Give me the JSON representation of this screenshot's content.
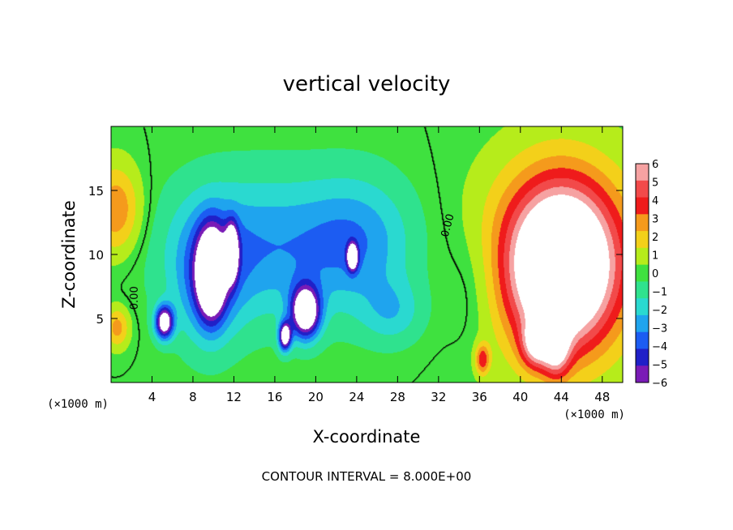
{
  "chart_data": {
    "type": "heatmap",
    "title": "vertical velocity",
    "xlabel": "X-coordinate",
    "ylabel": "Z-coordinate",
    "x_unit": "(×1000 m)",
    "y_unit": "(×1000 m)",
    "xlim": [
      0,
      50
    ],
    "ylim": [
      0,
      20
    ],
    "x_ticks": [
      4,
      8,
      12,
      16,
      20,
      24,
      28,
      32,
      36,
      40,
      44,
      48
    ],
    "y_ticks": [
      5,
      10,
      15
    ],
    "colorbar": {
      "levels": [
        6,
        5,
        4,
        3,
        2,
        1,
        0,
        -1,
        -2,
        -3,
        -4,
        -5,
        -6
      ],
      "colors": [
        "#f6a2a2",
        "#f24a4a",
        "#ef1b1b",
        "#f59a1c",
        "#f3d01a",
        "#b6ec1b",
        "#3fe13f",
        "#2fe28e",
        "#2ad9d0",
        "#1fa4ee",
        "#1c5cf2",
        "#2020c8",
        "#7a1bb6"
      ]
    },
    "contour_labels": [
      "0.00",
      "0.00"
    ],
    "footer": "CONTOUR INTERVAL = 8.000E+00",
    "blobs": [
      {
        "x": 0.5,
        "z": 13.5,
        "rx": 2.4,
        "rz": 3.5,
        "v": 3.5
      },
      {
        "x": 0.6,
        "z": 4.3,
        "rx": 1.2,
        "rz": 1.6,
        "v": 3.0
      },
      {
        "x": 14,
        "z": 10.5,
        "rx": 8.5,
        "rz": 5.5,
        "v": -3.3
      },
      {
        "x": 24,
        "z": 11,
        "rx": 5.5,
        "rz": 5.0,
        "v": -3.0
      },
      {
        "x": 9.5,
        "z": 8,
        "rx": 3.0,
        "rz": 5.0,
        "v": -3.5
      },
      {
        "x": 9.8,
        "z": 8.5,
        "rx": 1.3,
        "rz": 3.2,
        "v": -9.0
      },
      {
        "x": 11.8,
        "z": 10.2,
        "rx": 0.6,
        "rz": 2.0,
        "v": -8.0
      },
      {
        "x": 5.2,
        "z": 4.7,
        "rx": 0.9,
        "rz": 1.3,
        "v": -8.0
      },
      {
        "x": 19.0,
        "z": 5.5,
        "rx": 1.4,
        "rz": 2.0,
        "v": -9.0
      },
      {
        "x": 17.0,
        "z": 3.6,
        "rx": 0.6,
        "rz": 1.1,
        "v": -8.0
      },
      {
        "x": 23.6,
        "z": 9.8,
        "rx": 0.5,
        "rz": 1.0,
        "v": -8.0
      },
      {
        "x": 27.5,
        "z": 5.5,
        "rx": 3.0,
        "rz": 2.5,
        "v": -2.0
      },
      {
        "x": 35.5,
        "z": 7.5,
        "rx": 3.0,
        "rz": 5.0,
        "v": -1.2
      },
      {
        "x": 44.0,
        "z": 9.5,
        "rx": 7.5,
        "rz": 7.5,
        "v": 5.5
      },
      {
        "x": 44.0,
        "z": 9.0,
        "rx": 4.6,
        "rz": 5.8,
        "v": 8.0
      },
      {
        "x": 41.5,
        "z": 3.0,
        "rx": 1.4,
        "rz": 1.8,
        "v": 4.5
      },
      {
        "x": 36.3,
        "z": 1.8,
        "rx": 0.7,
        "rz": 1.2,
        "v": 4.0
      },
      {
        "x": 43.5,
        "z": 2.6,
        "rx": 1.3,
        "rz": 2.2,
        "v": 4.5
      }
    ]
  }
}
